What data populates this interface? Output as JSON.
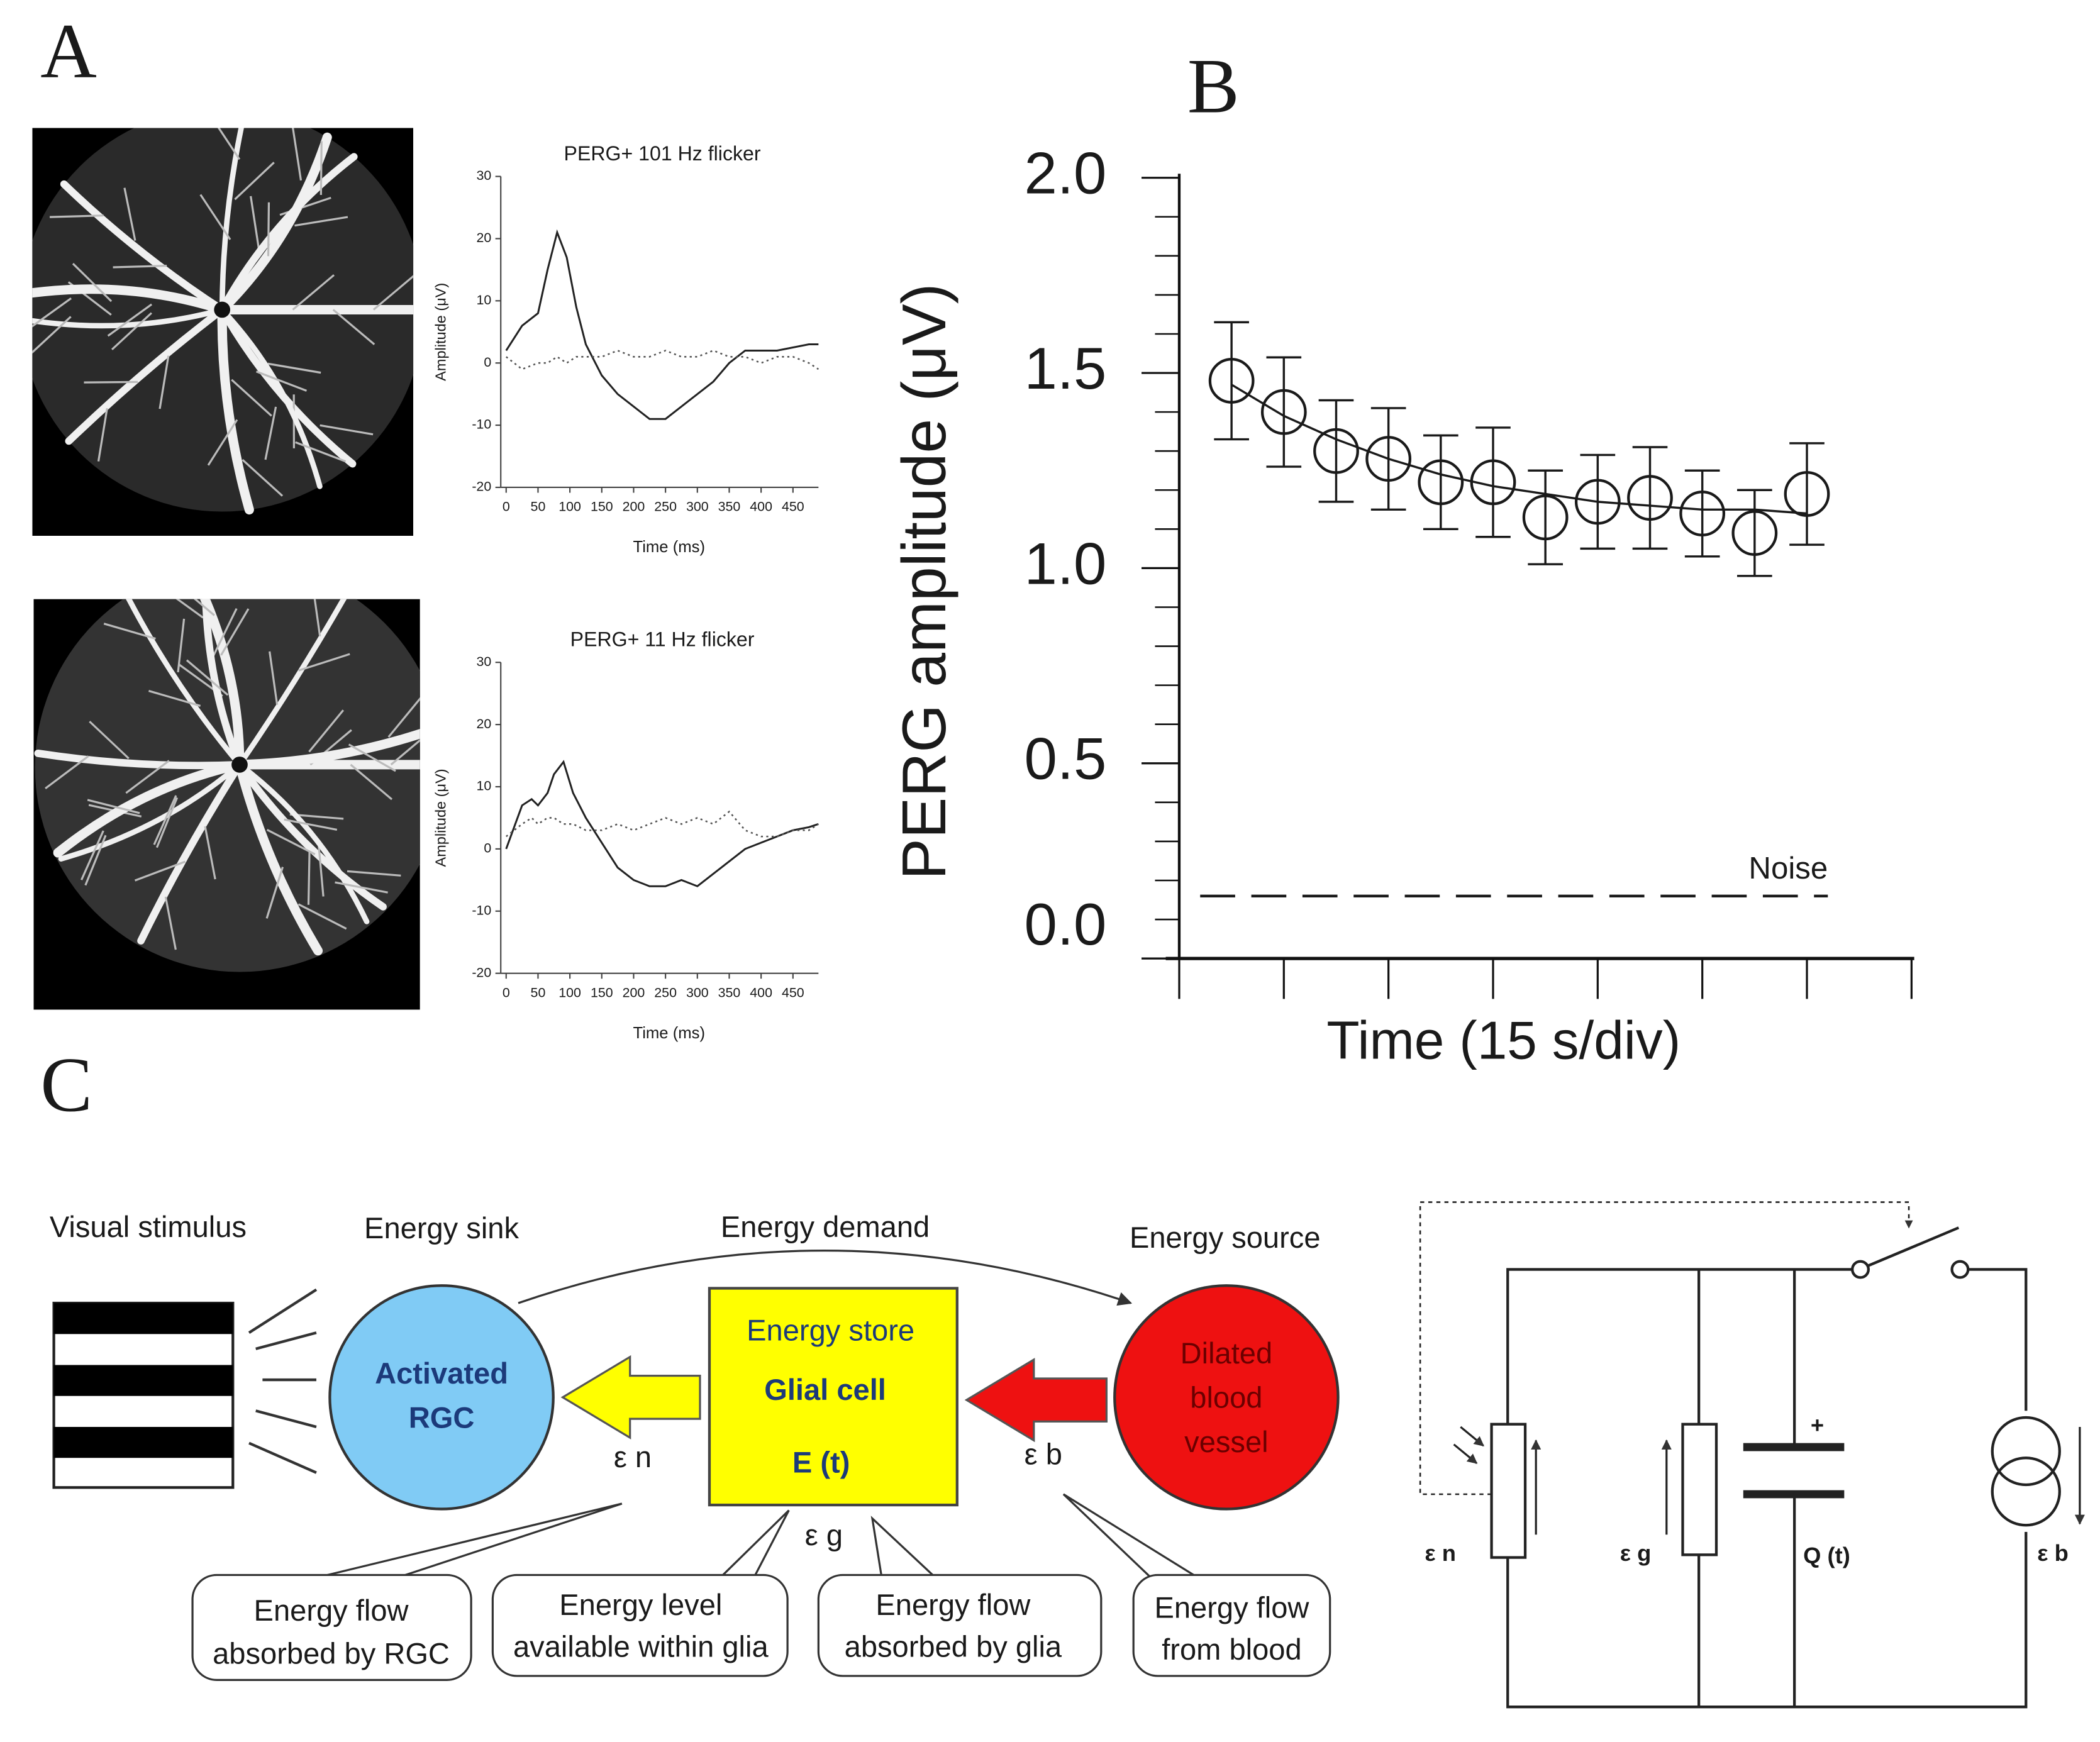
{
  "panels": {
    "a": "A",
    "b": "B",
    "c": "C"
  },
  "chart_data": [
    {
      "type": "line",
      "title": "PERG+ 101 Hz flicker",
      "x_label": "Time (ms)",
      "y_label": "Amplitude (μV)",
      "xlim": [
        0,
        490
      ],
      "ylim": [
        -20,
        30
      ],
      "xticks": [
        0,
        50,
        100,
        150,
        200,
        250,
        300,
        350,
        400,
        450
      ],
      "yticks": [
        -20,
        -10,
        0,
        10,
        20,
        30
      ],
      "x": [
        0,
        25,
        50,
        65,
        80,
        95,
        110,
        125,
        150,
        175,
        200,
        225,
        250,
        275,
        300,
        325,
        350,
        375,
        400,
        425,
        450,
        475,
        490
      ],
      "series": [
        {
          "color": "#222222",
          "style": "solid",
          "values": [
            2,
            6,
            8,
            15,
            21,
            17,
            9,
            3,
            -2,
            -5,
            -7,
            -9,
            -9,
            -7,
            -5,
            -3,
            0,
            2,
            2,
            2,
            2.5,
            3,
            3
          ]
        },
        {
          "color": "#555555",
          "style": "dotted",
          "values": [
            1,
            -1,
            0,
            0,
            1,
            0,
            1,
            1,
            1,
            2,
            1,
            1,
            2,
            1,
            1,
            2,
            1,
            1,
            0,
            1,
            1,
            0,
            -1
          ]
        }
      ]
    },
    {
      "type": "line",
      "title": "PERG+ 11 Hz flicker",
      "x_label": "Time (ms)",
      "y_label": "Amplitude (μV)",
      "xlim": [
        0,
        490
      ],
      "ylim": [
        -20,
        30
      ],
      "xticks": [
        0,
        50,
        100,
        150,
        200,
        250,
        300,
        350,
        400,
        450
      ],
      "yticks": [
        -20,
        -10,
        0,
        10,
        20,
        30
      ],
      "x": [
        0,
        25,
        40,
        50,
        65,
        75,
        90,
        105,
        125,
        150,
        175,
        200,
        225,
        250,
        275,
        300,
        325,
        350,
        375,
        400,
        425,
        450,
        475,
        490
      ],
      "series": [
        {
          "color": "#222222",
          "style": "solid",
          "values": [
            0,
            7,
            8,
            7,
            9,
            12,
            14,
            9,
            5,
            1,
            -3,
            -5,
            -6,
            -6,
            -5,
            -6,
            -4,
            -2,
            0,
            1,
            2,
            3,
            3.5,
            4
          ]
        },
        {
          "color": "#555555",
          "style": "dotted",
          "values": [
            2,
            4,
            5,
            4,
            5,
            5,
            4,
            4,
            3,
            3,
            4,
            3,
            4,
            5,
            4,
            5,
            4,
            6,
            3,
            2,
            2,
            3,
            3,
            4
          ]
        }
      ]
    },
    {
      "type": "scatter",
      "x_label": "Time (15 s/div)",
      "y_label": "PERG amplitude (μV)",
      "xlim": [
        0,
        105
      ],
      "xticks": [
        0,
        15,
        30,
        45,
        60,
        75,
        90,
        105
      ],
      "ylim": [
        0,
        2
      ],
      "yticks": [
        {
          "value": 0,
          "label": "0.0"
        },
        {
          "value": 0.5,
          "label": "0.5"
        },
        {
          "value": 1,
          "label": "1.0"
        },
        {
          "value": 1.5,
          "label": "1.5"
        },
        {
          "value": 2,
          "label": "2.0"
        }
      ],
      "yminorticks": [
        0.1,
        0.2,
        0.3,
        0.4,
        0.6,
        0.7,
        0.8,
        0.9,
        1.1,
        1.2,
        1.3,
        1.4,
        1.6,
        1.7,
        1.8,
        1.9
      ],
      "x": [
        7.5,
        15,
        22.5,
        30,
        37.5,
        45,
        52.5,
        60,
        67.5,
        75,
        82.5,
        90
      ],
      "series": [
        {
          "color": "#1a1a1a",
          "marker": "open-circle",
          "values": [
            1.48,
            1.4,
            1.3,
            1.28,
            1.22,
            1.22,
            1.13,
            1.17,
            1.18,
            1.14,
            1.09,
            1.19
          ],
          "errors": [
            0.15,
            0.14,
            0.13,
            0.13,
            0.12,
            0.14,
            0.12,
            0.12,
            0.13,
            0.11,
            0.11,
            0.13
          ]
        },
        {
          "color": "#1a1a1a",
          "style": "solid",
          "values": [
            1.47,
            1.39,
            1.33,
            1.28,
            1.24,
            1.21,
            1.19,
            1.17,
            1.16,
            1.15,
            1.15,
            1.14
          ]
        }
      ],
      "noise": {
        "label": "Noise",
        "value": 0.16,
        "x": [
          3,
          93
        ],
        "style": "dashed",
        "color": "#1a1a1a"
      }
    }
  ],
  "diagram": {
    "labels": {
      "visual_stimulus": "Visual stimulus",
      "energy_sink": "Energy sink",
      "energy_demand": "Energy demand",
      "energy_source": "Energy source"
    },
    "rgc": [
      "Activated",
      "RGC"
    ],
    "glia": [
      "Energy store",
      "Glial cell",
      "E (t)"
    ],
    "vessel": [
      "Dilated",
      "blood",
      "vessel"
    ],
    "flows": {
      "n": "ε n",
      "g": "ε g",
      "b": "ε b"
    },
    "callouts": [
      [
        "Energy flow",
        "absorbed by RGC"
      ],
      [
        "Energy level",
        "available within glia"
      ],
      [
        "Energy flow",
        "absorbed by glia"
      ],
      [
        "Energy flow",
        "from blood"
      ]
    ],
    "circuit": {
      "en": "ε n",
      "eg": "ε g",
      "q": "Q (t)",
      "eb": "ε b",
      "plus": "+"
    }
  }
}
